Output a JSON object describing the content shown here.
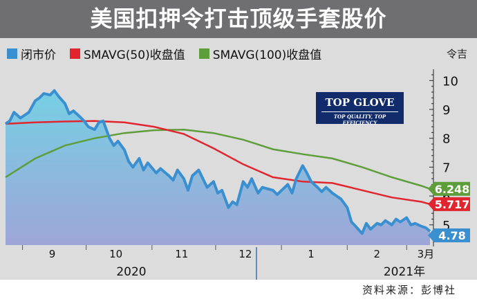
{
  "title": "美国扣押令打击顶级手套股价",
  "unit_label": "令吉",
  "source_label": "资料来源：彭博社",
  "logo": {
    "main": "TOP GLOVE",
    "sub": "TOP QUALITY, TOP EFFICIENCY"
  },
  "colors": {
    "close": "#3a8fd0",
    "close_fill_top": "#76cfe4",
    "close_fill_bottom": "#9ea6d7",
    "sma50": "#e0252e",
    "sma100": "#5e9e3a",
    "plot_bg": "#dcdcdc",
    "title_bg": "#6f6f71"
  },
  "chart_data": {
    "type": "line",
    "title": "美国扣押令打击顶级手套股价",
    "ylabel": "令吉",
    "ylim": [
      4.3,
      10.2
    ],
    "yticks": [
      5,
      6,
      7,
      8,
      9,
      10
    ],
    "x_tick_labels": [
      "9",
      "10",
      "11",
      "12",
      "1",
      "2",
      "3月"
    ],
    "year_labels": [
      "2020",
      "2021年"
    ],
    "legend": [
      "闭市价",
      "SMAVG(50)收盘值",
      "SMAVG(100)收盘值"
    ],
    "legend_position": "top-left",
    "grid": false,
    "end_labels": [
      "6.248",
      "5.717",
      "4.78"
    ],
    "series": [
      {
        "name": "闭市价",
        "type": "area",
        "points": [
          [
            "2020-08-24",
            8.5
          ],
          [
            "2020-08-26",
            8.6
          ],
          [
            "2020-08-28",
            8.9
          ],
          [
            "2020-08-31",
            8.7
          ],
          [
            "2020-09-02",
            8.8
          ],
          [
            "2020-09-04",
            8.9
          ],
          [
            "2020-09-07",
            9.3
          ],
          [
            "2020-09-09",
            9.4
          ],
          [
            "2020-09-11",
            9.55
          ],
          [
            "2020-09-14",
            9.5
          ],
          [
            "2020-09-16",
            9.65
          ],
          [
            "2020-09-18",
            9.45
          ],
          [
            "2020-09-21",
            9.2
          ],
          [
            "2020-09-23",
            8.85
          ],
          [
            "2020-09-25",
            8.95
          ],
          [
            "2020-09-28",
            8.75
          ],
          [
            "2020-09-30",
            8.6
          ],
          [
            "2020-10-02",
            8.4
          ],
          [
            "2020-10-05",
            8.3
          ],
          [
            "2020-10-07",
            8.55
          ],
          [
            "2020-10-09",
            8.6
          ],
          [
            "2020-10-12",
            8.0
          ],
          [
            "2020-10-14",
            7.75
          ],
          [
            "2020-10-16",
            7.9
          ],
          [
            "2020-10-19",
            7.6
          ],
          [
            "2020-10-21",
            7.2
          ],
          [
            "2020-10-23",
            7.0
          ],
          [
            "2020-10-26",
            7.3
          ],
          [
            "2020-10-28",
            6.9
          ],
          [
            "2020-10-30",
            7.15
          ],
          [
            "2020-11-03",
            6.8
          ],
          [
            "2020-11-05",
            6.95
          ],
          [
            "2020-11-09",
            6.7
          ],
          [
            "2020-11-11",
            6.55
          ],
          [
            "2020-11-13",
            6.9
          ],
          [
            "2020-11-16",
            6.6
          ],
          [
            "2020-11-18",
            6.2
          ],
          [
            "2020-11-20",
            6.7
          ],
          [
            "2020-11-23",
            6.9
          ],
          [
            "2020-11-25",
            6.6
          ],
          [
            "2020-11-27",
            6.3
          ],
          [
            "2020-11-30",
            6.5
          ],
          [
            "2020-12-02",
            6.1
          ],
          [
            "2020-12-04",
            6.2
          ],
          [
            "2020-12-07",
            5.6
          ],
          [
            "2020-12-09",
            5.8
          ],
          [
            "2020-12-11",
            5.7
          ],
          [
            "2020-12-14",
            6.5
          ],
          [
            "2020-12-16",
            6.3
          ],
          [
            "2020-12-18",
            6.6
          ],
          [
            "2020-12-21",
            6.1
          ],
          [
            "2020-12-23",
            6.3
          ],
          [
            "2020-12-28",
            6.2
          ],
          [
            "2020-12-30",
            6.05
          ],
          [
            "2021-01-04",
            6.4
          ],
          [
            "2021-01-06",
            6.1
          ],
          [
            "2021-01-08",
            6.6
          ],
          [
            "2021-01-11",
            7.05
          ],
          [
            "2021-01-13",
            6.8
          ],
          [
            "2021-01-15",
            6.5
          ],
          [
            "2021-01-18",
            6.3
          ],
          [
            "2021-01-20",
            6.15
          ],
          [
            "2021-01-22",
            6.3
          ],
          [
            "2021-01-25",
            6.1
          ],
          [
            "2021-01-27",
            6.0
          ],
          [
            "2021-01-29",
            5.9
          ],
          [
            "2021-02-01",
            5.6
          ],
          [
            "2021-02-03",
            5.1
          ],
          [
            "2021-02-05",
            4.95
          ],
          [
            "2021-02-08",
            4.7
          ],
          [
            "2021-02-10",
            5.05
          ],
          [
            "2021-02-12",
            4.85
          ],
          [
            "2021-02-15",
            5.05
          ],
          [
            "2021-02-17",
            5.0
          ],
          [
            "2021-02-19",
            5.15
          ],
          [
            "2021-02-22",
            5.0
          ],
          [
            "2021-02-24",
            5.2
          ],
          [
            "2021-02-26",
            5.1
          ],
          [
            "2021-03-01",
            5.25
          ],
          [
            "2021-03-03",
            5.0
          ],
          [
            "2021-03-05",
            5.05
          ],
          [
            "2021-03-08",
            4.95
          ],
          [
            "2021-03-10",
            4.9
          ],
          [
            "2021-03-12",
            4.78
          ]
        ]
      },
      {
        "name": "SMAVG(50)收盘值",
        "type": "line",
        "points": [
          [
            "2020-08-24",
            8.5
          ],
          [
            "2020-09-07",
            8.55
          ],
          [
            "2020-09-21",
            8.58
          ],
          [
            "2020-10-05",
            8.6
          ],
          [
            "2020-10-19",
            8.55
          ],
          [
            "2020-11-02",
            8.4
          ],
          [
            "2020-11-16",
            8.15
          ],
          [
            "2020-11-30",
            7.65
          ],
          [
            "2020-12-14",
            7.1
          ],
          [
            "2020-12-28",
            6.65
          ],
          [
            "2021-01-11",
            6.5
          ],
          [
            "2021-01-25",
            6.45
          ],
          [
            "2021-02-08",
            6.2
          ],
          [
            "2021-02-22",
            5.95
          ],
          [
            "2021-03-08",
            5.8
          ],
          [
            "2021-03-12",
            5.717
          ]
        ]
      },
      {
        "name": "SMAVG(100)收盘值",
        "type": "line",
        "points": [
          [
            "2020-08-24",
            6.65
          ],
          [
            "2020-09-07",
            7.3
          ],
          [
            "2020-09-21",
            7.75
          ],
          [
            "2020-10-05",
            8.0
          ],
          [
            "2020-10-19",
            8.18
          ],
          [
            "2020-11-02",
            8.28
          ],
          [
            "2020-11-16",
            8.3
          ],
          [
            "2020-11-30",
            8.18
          ],
          [
            "2020-12-14",
            7.95
          ],
          [
            "2020-12-28",
            7.62
          ],
          [
            "2021-01-11",
            7.45
          ],
          [
            "2021-01-25",
            7.3
          ],
          [
            "2021-02-08",
            7.0
          ],
          [
            "2021-02-22",
            6.65
          ],
          [
            "2021-03-08",
            6.35
          ],
          [
            "2021-03-12",
            6.248
          ]
        ]
      }
    ]
  }
}
